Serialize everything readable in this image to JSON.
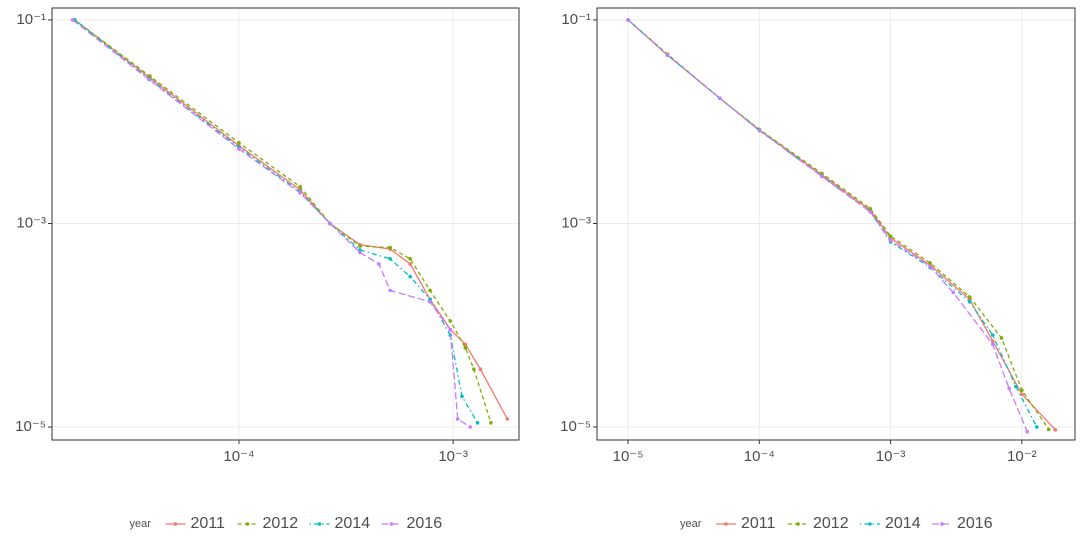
{
  "chart_data": [
    {
      "type": "line",
      "log_x": true,
      "log_y": true,
      "grid": true,
      "legend_title": "year",
      "legend": "bottom",
      "xlim": [
        1.34e-05,
        0.00203
      ],
      "ylim": [
        7.46e-06,
        0.131
      ],
      "xticks": [
        {
          "value": 0.0001,
          "label": "10⁻⁴"
        },
        {
          "value": 0.001,
          "label": "10⁻³"
        }
      ],
      "yticks": [
        {
          "value": 0.1,
          "label": "10⁻¹"
        },
        {
          "value": 0.001,
          "label": "10⁻³"
        },
        {
          "value": 1e-05,
          "label": "10⁻⁵"
        }
      ],
      "series": [
        {
          "name": "2011",
          "color": "#F8766D",
          "linestyle": "solid",
          "x": [
            1.71e-05,
            3.84e-05,
            0.0001,
            0.000193,
            0.000266,
            0.000367,
            0.000508,
            0.00063,
            0.00078,
            0.00097,
            0.00114,
            0.00134,
            0.00179
          ],
          "values": [
            0.1,
            0.027,
            0.0058,
            0.00215,
            0.001,
            0.00062,
            0.00056,
            0.0004,
            0.00018,
            9.1e-05,
            6.5e-05,
            3.7e-05,
            1.2e-05
          ]
        },
        {
          "name": "2012",
          "color": "#7CAE00",
          "linestyle": "dashed",
          "x": [
            1.71e-05,
            3.84e-05,
            0.0001,
            0.000193,
            0.000266,
            0.000367,
            0.000508,
            0.00063,
            0.00078,
            0.00097,
            0.00114,
            0.00125,
            0.0015
          ],
          "values": [
            0.1,
            0.028,
            0.0062,
            0.0023,
            0.001,
            0.0006,
            0.00058,
            0.00045,
            0.00022,
            0.00011,
            6e-05,
            3.7e-05,
            1.1e-05
          ]
        },
        {
          "name": "2014",
          "color": "#00BFC4",
          "linestyle": "dotdash",
          "x": [
            1.71e-05,
            3.84e-05,
            0.0001,
            0.000193,
            0.000266,
            0.000367,
            0.000508,
            0.00063,
            0.00078,
            0.00097,
            0.0011,
            0.0013
          ],
          "values": [
            0.1,
            0.026,
            0.0056,
            0.00205,
            0.001,
            0.00055,
            0.00045,
            0.0003,
            0.00018,
            8e-05,
            2e-05,
            1.1e-05
          ]
        },
        {
          "name": "2016",
          "color": "#C77CFF",
          "linestyle": "longdash",
          "x": [
            1.67e-05,
            3.8e-05,
            0.0001,
            0.000193,
            0.000266,
            0.000367,
            0.00045,
            0.000508,
            0.00078,
            0.00097,
            0.00105,
            0.0012
          ],
          "values": [
            0.1,
            0.026,
            0.0054,
            0.002,
            0.001,
            0.00052,
            0.0004,
            0.00022,
            0.00017,
            9e-05,
            1.2e-05,
            1e-05
          ]
        }
      ]
    },
    {
      "type": "line",
      "log_x": true,
      "log_y": true,
      "grid": true,
      "legend_title": "year",
      "legend": "bottom",
      "xlim": [
        5.8e-06,
        0.0254
      ],
      "ylim": [
        7.46e-06,
        0.131
      ],
      "xticks": [
        {
          "value": 1e-05,
          "label": "10⁻⁵"
        },
        {
          "value": 0.0001,
          "label": "10⁻⁴"
        },
        {
          "value": 0.001,
          "label": "10⁻³"
        },
        {
          "value": 0.01,
          "label": "10⁻²"
        }
      ],
      "yticks": [
        {
          "value": 0.1,
          "label": "10⁻¹"
        },
        {
          "value": 0.001,
          "label": "10⁻³"
        },
        {
          "value": 1e-05,
          "label": "10⁻⁵"
        }
      ],
      "series": [
        {
          "name": "2011",
          "color": "#F8766D",
          "linestyle": "solid",
          "x": [
            1e-05,
            2e-05,
            5e-05,
            0.0001,
            0.0003,
            0.0007,
            0.001,
            0.002,
            0.004,
            0.006,
            0.01,
            0.018
          ],
          "values": [
            0.1,
            0.045,
            0.017,
            0.0083,
            0.003,
            0.00135,
            0.00072,
            0.00039,
            0.00018,
            7e-05,
            2.1e-05,
            9.4e-06
          ]
        },
        {
          "name": "2012",
          "color": "#7CAE00",
          "linestyle": "dashed",
          "x": [
            1e-05,
            2e-05,
            5e-05,
            0.0001,
            0.0003,
            0.0007,
            0.001,
            0.002,
            0.004,
            0.007,
            0.01,
            0.016
          ],
          "values": [
            0.1,
            0.046,
            0.017,
            0.0084,
            0.0031,
            0.0014,
            0.00075,
            0.00041,
            0.00019,
            7.5e-05,
            2.3e-05,
            9.5e-06
          ]
        },
        {
          "name": "2014",
          "color": "#00BFC4",
          "linestyle": "dotdash",
          "x": [
            1e-05,
            2e-05,
            5e-05,
            0.0001,
            0.0003,
            0.0007,
            0.001,
            0.002,
            0.004,
            0.006,
            0.009,
            0.013
          ],
          "values": [
            0.1,
            0.045,
            0.017,
            0.0082,
            0.0029,
            0.0013,
            0.00066,
            0.00037,
            0.00017,
            8e-05,
            2.5e-05,
            1e-05
          ]
        },
        {
          "name": "2016",
          "color": "#C77CFF",
          "linestyle": "longdash",
          "x": [
            1e-05,
            2e-05,
            5e-05,
            0.0001,
            0.0003,
            0.0007,
            0.001,
            0.002,
            0.003,
            0.006,
            0.008,
            0.011
          ],
          "values": [
            0.1,
            0.045,
            0.017,
            0.0082,
            0.0029,
            0.0013,
            0.00068,
            0.00038,
            0.00021,
            6.5e-05,
            2.4e-05,
            9e-06
          ]
        }
      ]
    }
  ]
}
